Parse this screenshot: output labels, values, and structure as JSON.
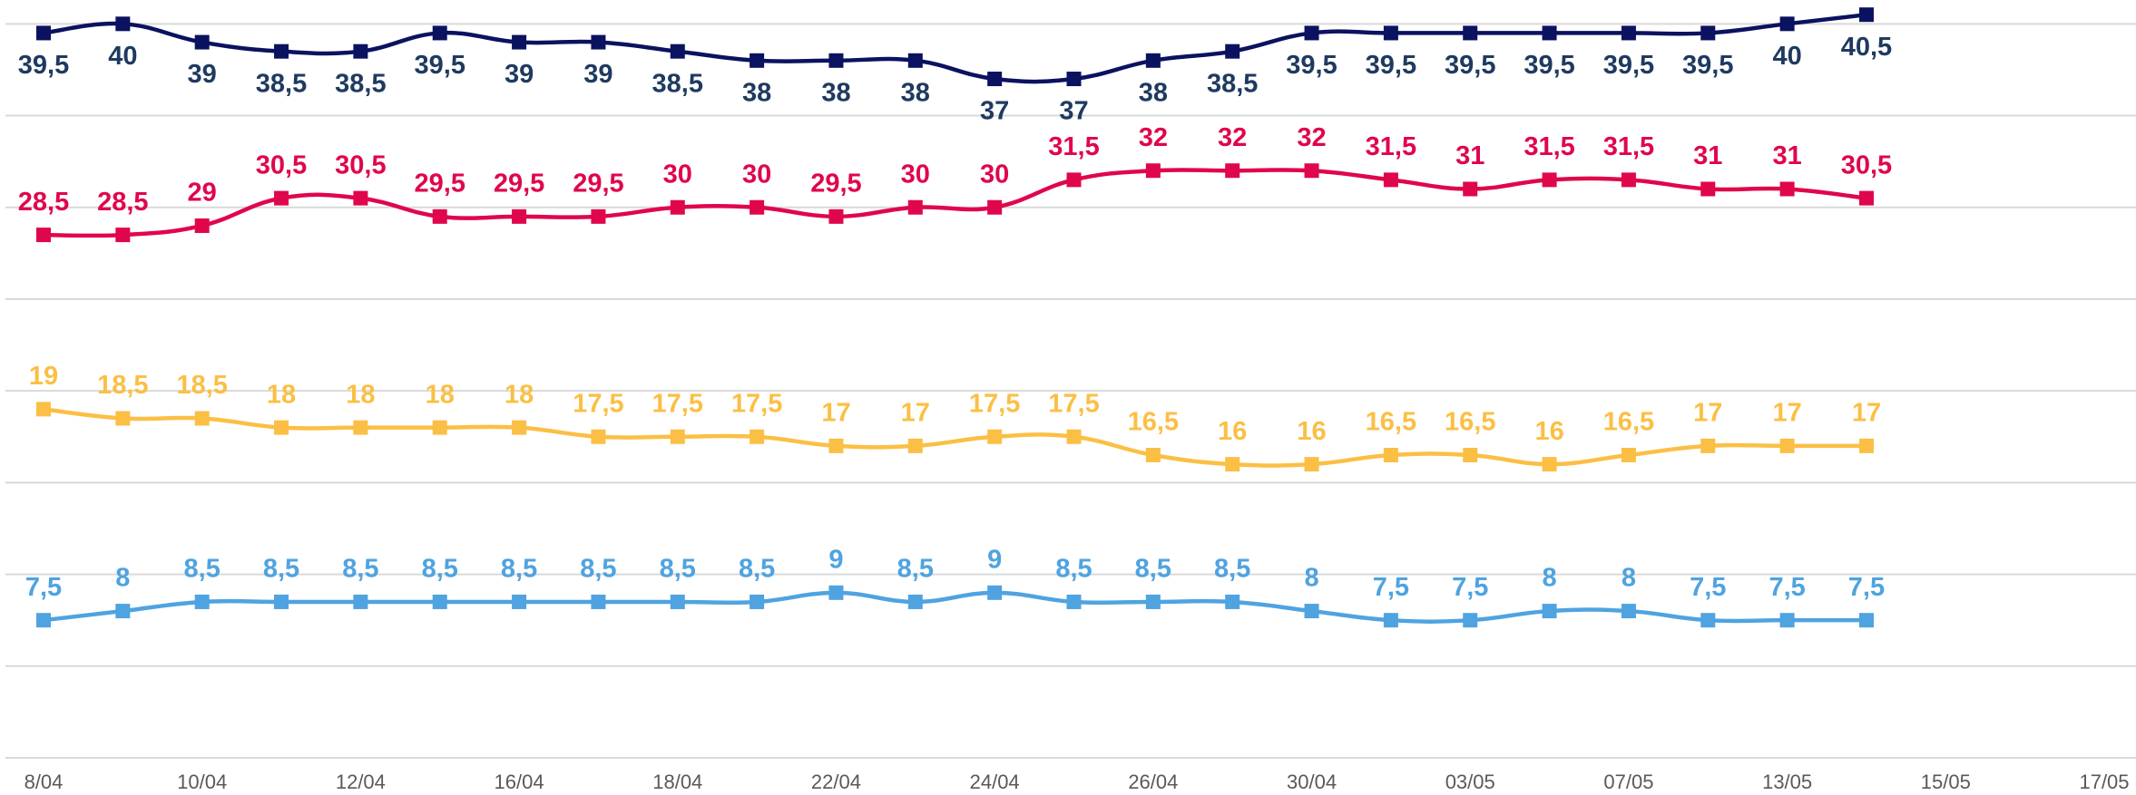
{
  "chart_data": {
    "type": "line",
    "categories": [
      "8/04",
      null,
      "10/04",
      null,
      "12/04",
      null,
      "16/04",
      null,
      "18/04",
      null,
      "22/04",
      null,
      "24/04",
      null,
      "26/04",
      null,
      "30/04",
      null,
      "03/05",
      null,
      "07/05",
      null,
      "13/05",
      null,
      "15/05",
      null,
      "17/05"
    ],
    "ylim": [
      0,
      41.3
    ],
    "yticks": [
      0,
      5,
      10,
      15,
      20,
      25,
      30,
      35,
      40
    ],
    "grid": true,
    "series": [
      {
        "color": "#0b1260",
        "label_color": "#1f3a60",
        "values": [
          39.5,
          40,
          39,
          38.5,
          38.5,
          39.5,
          39,
          39,
          38.5,
          38,
          38,
          38,
          37,
          37,
          38,
          38.5,
          39.5,
          39.5,
          39.5,
          39.5,
          39.5,
          39.5,
          40,
          40.5,
          null,
          null,
          null
        ],
        "value_labels": [
          "39,5",
          "40",
          "39",
          "38,5",
          "38,5",
          "39,5",
          "39",
          "39",
          "38,5",
          "38",
          "38",
          "38",
          "37",
          "37",
          "38",
          "38,5",
          "39,5",
          "39,5",
          "39,5",
          "39,5",
          "39,5",
          "39,5",
          "40",
          "40,5",
          null,
          null,
          null
        ]
      },
      {
        "color": "#e0064c",
        "label_color": "#e0064c",
        "values": [
          28.5,
          28.5,
          29,
          30.5,
          30.5,
          29.5,
          29.5,
          29.5,
          30,
          30,
          29.5,
          30,
          30,
          31.5,
          32,
          32,
          32,
          31.5,
          31,
          31.5,
          31.5,
          31,
          31,
          30.5,
          null,
          null,
          null
        ],
        "value_labels": [
          "28,5",
          "28,5",
          "29",
          "30,5",
          "30,5",
          "29,5",
          "29,5",
          "29,5",
          "30",
          "30",
          "29,5",
          "30",
          "30",
          "31,5",
          "32",
          "32",
          "32",
          "31,5",
          "31",
          "31,5",
          "31,5",
          "31",
          "31",
          "30,5",
          null,
          null,
          null
        ]
      },
      {
        "color": "#fbbf45",
        "label_color": "#fbbf45",
        "values": [
          19,
          18.5,
          18.5,
          18,
          18,
          18,
          18,
          17.5,
          17.5,
          17.5,
          17,
          17,
          17.5,
          17.5,
          16.5,
          16,
          16,
          16.5,
          16.5,
          16,
          16.5,
          17,
          17,
          17,
          null,
          null,
          null
        ],
        "value_labels": [
          "19",
          "18,5",
          "18,5",
          "18",
          "18",
          "18",
          "18",
          "17,5",
          "17,5",
          "17,5",
          "17",
          "17",
          "17,5",
          "17,5",
          "16,5",
          "16",
          "16",
          "16,5",
          "16,5",
          "16",
          "16,5",
          "17",
          "17",
          "17",
          null,
          null,
          null
        ]
      },
      {
        "color": "#4fa3e0",
        "label_color": "#4fa3e0",
        "values": [
          7.5,
          8,
          8.5,
          8.5,
          8.5,
          8.5,
          8.5,
          8.5,
          8.5,
          8.5,
          9,
          8.5,
          9,
          8.5,
          8.5,
          8.5,
          8,
          7.5,
          7.5,
          8,
          8,
          7.5,
          7.5,
          7.5,
          null,
          null,
          null
        ],
        "value_labels": [
          "7,5",
          "8",
          "8,5",
          "8,5",
          "8,5",
          "8,5",
          "8,5",
          "8,5",
          "8,5",
          "8,5",
          "9",
          "8,5",
          "9",
          "8,5",
          "8,5",
          "8,5",
          "8",
          "7,5",
          "7,5",
          "8",
          "8",
          "7,5",
          "7,5",
          "7,5",
          null,
          null,
          null
        ]
      }
    ]
  }
}
